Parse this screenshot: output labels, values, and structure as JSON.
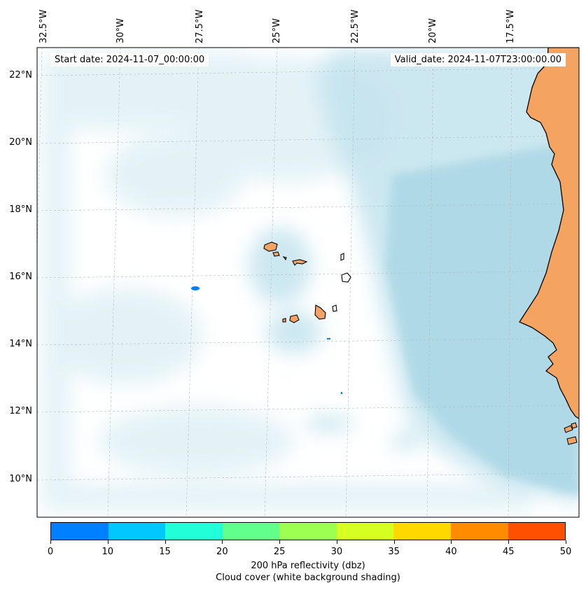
{
  "annotations": {
    "start_date": "Start date: 2024-11-07_00:00:00",
    "valid_date": "Valid_date: 2024-11-07T23:00:00.00"
  },
  "longitude_labels": [
    "32.5°W",
    "30°W",
    "27.5°W",
    "25°W",
    "22.5°W",
    "20°W",
    "17.5°W"
  ],
  "latitude_labels": [
    "22°N",
    "20°N",
    "18°N",
    "16°N",
    "14°N",
    "12°N",
    "10°N"
  ],
  "colorbar": {
    "ticks": [
      "0",
      "10",
      "15",
      "20",
      "25",
      "30",
      "35",
      "40",
      "45",
      "50"
    ],
    "colors": [
      "#0080ff",
      "#00c8ff",
      "#22ffd8",
      "#62ff8c",
      "#9cff52",
      "#d6ff22",
      "#ffd800",
      "#ff8c00",
      "#ff5000"
    ],
    "label_line1": "200 hPa reflectivity (dbz)",
    "label_line2": "Cloud cover (white background shading)"
  },
  "colors": {
    "land": "#f4a460",
    "cloud": "#add8e6",
    "reflectivity_echo": "#0080ff"
  }
}
